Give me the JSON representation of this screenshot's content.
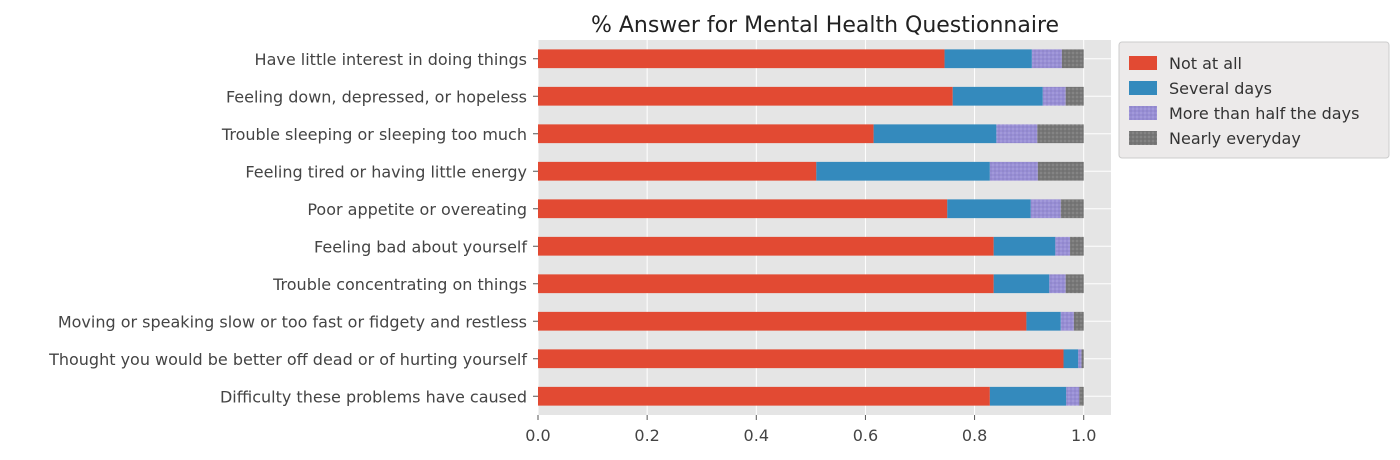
{
  "chart_data": {
    "type": "bar",
    "orientation": "horizontal",
    "stacked": true,
    "title": "% Answer for Mental Health Questionnaire",
    "xlabel": "",
    "ylabel": "",
    "xlim": [
      0,
      1.05
    ],
    "xticks": [
      "0.0",
      "0.2",
      "0.4",
      "0.6",
      "0.8",
      "1.0"
    ],
    "grid": true,
    "legend_placement": "outside-top-right",
    "categories": [
      "Have little interest in doing things",
      "Feeling down, depressed, or hopeless",
      "Trouble sleeping or sleeping too much",
      "Feeling tired or having little energy",
      "Poor appetite or overeating",
      "Feeling bad about yourself",
      "Trouble concentrating on things",
      "Moving or speaking slow or too fast or fidgety and restless",
      "Thought you would be better off dead or of hurting yourself",
      "Difficulty these problems have caused"
    ],
    "series": [
      {
        "name": "Not at all",
        "color": "#E24A33",
        "values": [
          0.745,
          0.76,
          0.615,
          0.51,
          0.75,
          0.835,
          0.835,
          0.895,
          0.963,
          0.828
        ]
      },
      {
        "name": "Several days",
        "color": "#348ABD",
        "values": [
          0.16,
          0.165,
          0.225,
          0.318,
          0.153,
          0.113,
          0.102,
          0.063,
          0.027,
          0.14
        ]
      },
      {
        "name": "More than half the days",
        "color": "#988ED5",
        "values": [
          0.055,
          0.042,
          0.075,
          0.088,
          0.055,
          0.027,
          0.03,
          0.024,
          0.006,
          0.024
        ]
      },
      {
        "name": "Nearly everyday",
        "color": "#777777",
        "values": [
          0.04,
          0.033,
          0.085,
          0.084,
          0.042,
          0.025,
          0.033,
          0.018,
          0.004,
          0.008
        ]
      }
    ]
  }
}
